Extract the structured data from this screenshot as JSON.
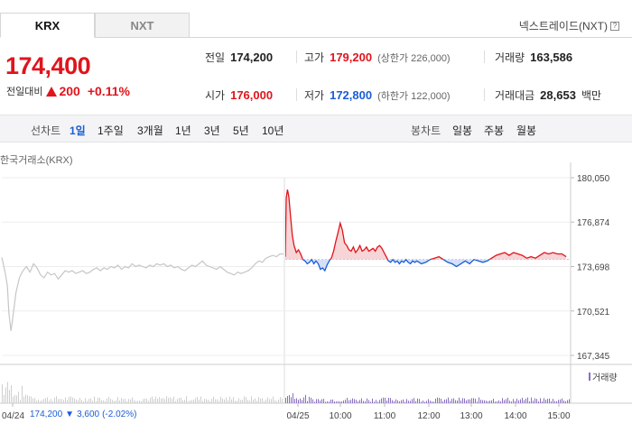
{
  "tabs": [
    {
      "label": "KRX",
      "active": true
    },
    {
      "label": "NXT",
      "active": false
    }
  ],
  "nxt_link": "넥스트레이드(NXT)",
  "help_icon": "question-icon",
  "price": {
    "current": "174,400",
    "change_label": "전일대비",
    "change": "200",
    "change_pct": "+0.11%"
  },
  "stats": {
    "prev_close": {
      "label": "전일",
      "value": "174,200"
    },
    "open": {
      "label": "시가",
      "value": "176,000"
    },
    "high": {
      "label": "고가",
      "value": "179,200",
      "limit": "(상한가 226,000)"
    },
    "low": {
      "label": "저가",
      "value": "172,800",
      "limit": "(하한가 122,000)"
    },
    "volume": {
      "label": "거래량",
      "value": "163,586"
    },
    "trade_value": {
      "label": "거래대금",
      "value": "28,653",
      "unit": "백만"
    }
  },
  "periods": {
    "line_label": "선차트",
    "line": [
      "1일",
      "1주일",
      "3개월",
      "1년",
      "3년",
      "5년",
      "10년"
    ],
    "selected": "1일",
    "candle_label": "봉차트",
    "candle": [
      "일봉",
      "주봉",
      "월봉"
    ]
  },
  "chart_source": "한국거래소(KRX)",
  "colors": {
    "up": "#e0141c",
    "down": "#1a5dd6",
    "prev": "#c6c6c6",
    "volume": "#8a6fbf"
  },
  "chart_data": {
    "type": "line",
    "y_ticks": [
      "180,050",
      "176,874",
      "173,698",
      "170,521",
      "167,345"
    ],
    "ylim": [
      167345,
      180050
    ],
    "reference_price": 174200,
    "x_ticks": [
      "04/24",
      "04/25",
      "10:00",
      "11:00",
      "12:00",
      "13:00",
      "14:00",
      "15:00"
    ],
    "volume_label": "거래량",
    "footer": {
      "date": "04/24",
      "price": "174,200",
      "change": "3,600",
      "change_pct": "(-2.02%)"
    },
    "prev_day": [
      [
        0,
        174350
      ],
      [
        0.02,
        173900
      ],
      [
        0.05,
        173200
      ],
      [
        0.08,
        172300
      ],
      [
        0.1,
        170400
      ],
      [
        0.13,
        169100
      ],
      [
        0.15,
        169800
      ],
      [
        0.2,
        171800
      ],
      [
        0.25,
        172900
      ],
      [
        0.3,
        173400
      ],
      [
        0.35,
        173700
      ],
      [
        0.4,
        173300
      ],
      [
        0.45,
        173900
      ],
      [
        0.5,
        173600
      ],
      [
        0.55,
        173100
      ],
      [
        0.6,
        172900
      ],
      [
        0.65,
        173300
      ],
      [
        0.7,
        173100
      ],
      [
        0.75,
        173200
      ],
      [
        0.8,
        172800
      ],
      [
        0.85,
        173100
      ],
      [
        0.9,
        173400
      ],
      [
        0.95,
        173300
      ],
      [
        1,
        173400
      ],
      [
        1.05,
        173200
      ],
      [
        1.1,
        173300
      ],
      [
        1.15,
        173400
      ],
      [
        1.2,
        173200
      ],
      [
        1.25,
        173300
      ],
      [
        1.3,
        173500
      ],
      [
        1.35,
        173600
      ],
      [
        1.4,
        173400
      ],
      [
        1.45,
        173600
      ],
      [
        1.5,
        173500
      ],
      [
        1.55,
        173700
      ],
      [
        1.6,
        173600
      ],
      [
        1.65,
        173800
      ],
      [
        1.7,
        173500
      ],
      [
        1.75,
        173700
      ],
      [
        1.8,
        173600
      ],
      [
        1.85,
        173900
      ],
      [
        1.9,
        173700
      ],
      [
        1.95,
        173800
      ],
      [
        2,
        173700
      ],
      [
        2.05,
        173600
      ],
      [
        2.1,
        173800
      ],
      [
        2.15,
        173700
      ],
      [
        2.2,
        173900
      ],
      [
        2.25,
        173800
      ],
      [
        2.3,
        173900
      ],
      [
        2.35,
        173700
      ],
      [
        2.4,
        173800
      ],
      [
        2.45,
        173600
      ],
      [
        2.5,
        173700
      ],
      [
        2.55,
        173500
      ],
      [
        2.6,
        173400
      ],
      [
        2.65,
        173600
      ],
      [
        2.7,
        173800
      ],
      [
        2.75,
        173700
      ],
      [
        2.8,
        173900
      ],
      [
        2.85,
        174100
      ],
      [
        2.9,
        173800
      ],
      [
        2.95,
        173700
      ],
      [
        3,
        173600
      ],
      [
        3.05,
        173500
      ],
      [
        3.1,
        173700
      ],
      [
        3.15,
        173500
      ],
      [
        3.2,
        173300
      ],
      [
        3.25,
        173200
      ],
      [
        3.3,
        173100
      ],
      [
        3.35,
        173300
      ],
      [
        3.4,
        173200
      ],
      [
        3.45,
        173300
      ],
      [
        3.5,
        173400
      ],
      [
        3.55,
        173600
      ],
      [
        3.6,
        173900
      ],
      [
        3.65,
        174100
      ],
      [
        3.7,
        174000
      ],
      [
        3.75,
        174300
      ],
      [
        3.8,
        174400
      ],
      [
        3.85,
        174500
      ],
      [
        3.9,
        174400
      ],
      [
        3.95,
        174600
      ],
      [
        4,
        174600
      ]
    ],
    "today": [
      [
        9.0,
        174400
      ],
      [
        9.02,
        178600
      ],
      [
        9.05,
        179200
      ],
      [
        9.08,
        178700
      ],
      [
        9.12,
        177300
      ],
      [
        9.16,
        175900
      ],
      [
        9.2,
        175200
      ],
      [
        9.25,
        174700
      ],
      [
        9.3,
        174900
      ],
      [
        9.35,
        174600
      ],
      [
        9.4,
        174200
      ],
      [
        9.45,
        174100
      ],
      [
        9.5,
        173900
      ],
      [
        9.55,
        174000
      ],
      [
        9.6,
        174200
      ],
      [
        9.65,
        173900
      ],
      [
        9.7,
        174100
      ],
      [
        9.75,
        173900
      ],
      [
        9.8,
        173500
      ],
      [
        9.85,
        173600
      ],
      [
        9.9,
        173400
      ],
      [
        9.95,
        173800
      ],
      [
        10,
        174100
      ],
      [
        10.05,
        174300
      ],
      [
        10.1,
        174800
      ],
      [
        10.15,
        175500
      ],
      [
        10.2,
        176100
      ],
      [
        10.25,
        176800
      ],
      [
        10.3,
        176300
      ],
      [
        10.35,
        175400
      ],
      [
        10.4,
        175200
      ],
      [
        10.45,
        174900
      ],
      [
        10.5,
        174800
      ],
      [
        10.55,
        175100
      ],
      [
        10.6,
        174700
      ],
      [
        10.65,
        174900
      ],
      [
        10.7,
        175200
      ],
      [
        10.75,
        174800
      ],
      [
        10.8,
        174900
      ],
      [
        10.85,
        175100
      ],
      [
        10.9,
        174800
      ],
      [
        10.95,
        174900
      ],
      [
        11,
        175000
      ],
      [
        11.05,
        174800
      ],
      [
        11.1,
        175100
      ],
      [
        11.15,
        175200
      ],
      [
        11.2,
        175000
      ],
      [
        11.25,
        174700
      ],
      [
        11.3,
        174400
      ],
      [
        11.35,
        174100
      ],
      [
        11.4,
        174000
      ],
      [
        11.45,
        174200
      ],
      [
        11.5,
        174000
      ],
      [
        11.55,
        174100
      ],
      [
        11.6,
        173900
      ],
      [
        11.65,
        174100
      ],
      [
        11.7,
        174000
      ],
      [
        11.75,
        174200
      ],
      [
        11.8,
        174000
      ],
      [
        11.85,
        173900
      ],
      [
        11.9,
        174100
      ],
      [
        11.95,
        174000
      ],
      [
        12,
        174100
      ],
      [
        12.1,
        173900
      ],
      [
        12.2,
        174000
      ],
      [
        12.3,
        174200
      ],
      [
        12.4,
        174300
      ],
      [
        12.5,
        174400
      ],
      [
        12.6,
        174200
      ],
      [
        12.7,
        174000
      ],
      [
        12.8,
        173900
      ],
      [
        12.9,
        173700
      ],
      [
        13,
        173900
      ],
      [
        13.1,
        174100
      ],
      [
        13.2,
        173900
      ],
      [
        13.3,
        174200
      ],
      [
        13.4,
        174100
      ],
      [
        13.5,
        174000
      ],
      [
        13.6,
        174100
      ],
      [
        13.7,
        174300
      ],
      [
        13.8,
        174500
      ],
      [
        13.9,
        174600
      ],
      [
        14,
        174700
      ],
      [
        14.1,
        174500
      ],
      [
        14.2,
        174700
      ],
      [
        14.3,
        174600
      ],
      [
        14.4,
        174500
      ],
      [
        14.5,
        174300
      ],
      [
        14.6,
        174400
      ],
      [
        14.7,
        174300
      ],
      [
        14.8,
        174500
      ],
      [
        14.9,
        174700
      ],
      [
        15,
        174600
      ],
      [
        15.1,
        174700
      ],
      [
        15.2,
        174600
      ],
      [
        15.3,
        174600
      ],
      [
        15.4,
        174400
      ]
    ]
  }
}
